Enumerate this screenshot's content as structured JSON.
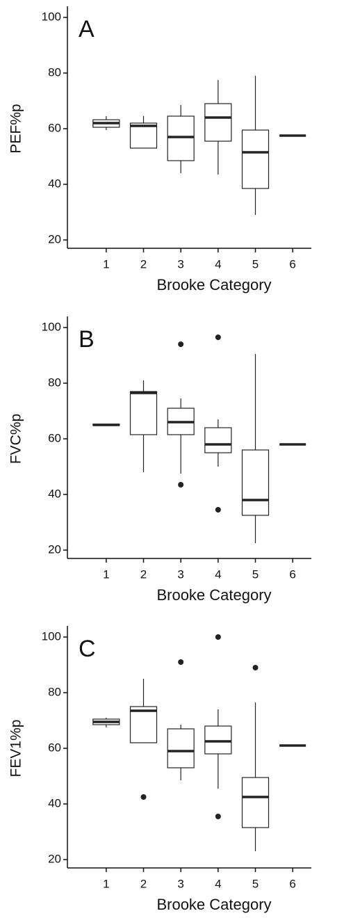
{
  "chart_data": [
    {
      "type": "box",
      "label": "A",
      "ylabel": "PEF%p",
      "xlabel": "Brooke Category",
      "categories": [
        "1",
        "2",
        "3",
        "4",
        "5",
        "6"
      ],
      "ylim": [
        18,
        104
      ],
      "yticks": [
        20,
        40,
        60,
        80,
        100
      ],
      "boxes": [
        {
          "min": 59.5,
          "q1": 60.5,
          "median": 62,
          "q3": 63.2,
          "max": 64.5,
          "outliers": []
        },
        {
          "min": 53,
          "q1": 53,
          "median": 61,
          "q3": 62,
          "max": 64.5,
          "outliers": []
        },
        {
          "min": 44,
          "q1": 48.5,
          "median": 57,
          "q3": 64.5,
          "max": 68.5,
          "outliers": []
        },
        {
          "min": 43.5,
          "q1": 55.5,
          "median": 64,
          "q3": 69,
          "max": 77.5,
          "outliers": []
        },
        {
          "min": 29,
          "q1": 38.5,
          "median": 51.5,
          "q3": 59.5,
          "max": 79,
          "outliers": []
        },
        {
          "min": 57.5,
          "q1": 57.5,
          "median": 57.5,
          "q3": 57.5,
          "max": 57.5,
          "outliers": []
        }
      ]
    },
    {
      "type": "box",
      "label": "B",
      "ylabel": "FVC%p",
      "xlabel": "Brooke Category",
      "categories": [
        "1",
        "2",
        "3",
        "4",
        "5",
        "6"
      ],
      "ylim": [
        18,
        104
      ],
      "yticks": [
        20,
        40,
        60,
        80,
        100
      ],
      "boxes": [
        {
          "min": 64.8,
          "q1": 64.8,
          "median": 65,
          "q3": 65.3,
          "max": 65.3,
          "outliers": []
        },
        {
          "min": 48,
          "q1": 61.5,
          "median": 76.5,
          "q3": 77,
          "max": 81,
          "outliers": []
        },
        {
          "min": 47.5,
          "q1": 61.5,
          "median": 66,
          "q3": 71,
          "max": 74.5,
          "outliers": [
            94,
            43.5
          ]
        },
        {
          "min": 50,
          "q1": 55,
          "median": 58,
          "q3": 64,
          "max": 67,
          "outliers": [
            96.5,
            34.5
          ]
        },
        {
          "min": 22.5,
          "q1": 32.5,
          "median": 38,
          "q3": 56,
          "max": 90.5,
          "outliers": []
        },
        {
          "min": 58,
          "q1": 58,
          "median": 58,
          "q3": 58,
          "max": 58,
          "outliers": []
        }
      ]
    },
    {
      "type": "box",
      "label": "C",
      "ylabel": "FEV1%p",
      "xlabel": "Brooke Category",
      "categories": [
        "1",
        "2",
        "3",
        "4",
        "5",
        "6"
      ],
      "ylim": [
        18,
        104
      ],
      "yticks": [
        20,
        40,
        60,
        80,
        100
      ],
      "boxes": [
        {
          "min": 67.5,
          "q1": 68.5,
          "median": 69.5,
          "q3": 70.5,
          "max": 71,
          "outliers": []
        },
        {
          "min": 62,
          "q1": 62,
          "median": 73.5,
          "q3": 75,
          "max": 85,
          "outliers": [
            42.5
          ]
        },
        {
          "min": 48.5,
          "q1": 53,
          "median": 59,
          "q3": 67,
          "max": 68.5,
          "outliers": [
            91
          ]
        },
        {
          "min": 45.5,
          "q1": 58,
          "median": 62.5,
          "q3": 68,
          "max": 74,
          "outliers": [
            100,
            35.5
          ]
        },
        {
          "min": 23,
          "q1": 31.5,
          "median": 42.5,
          "q3": 49.5,
          "max": 76.5,
          "outliers": [
            89
          ]
        },
        {
          "min": 61,
          "q1": 61,
          "median": 61,
          "q3": 61,
          "max": 61,
          "outliers": []
        }
      ]
    }
  ]
}
